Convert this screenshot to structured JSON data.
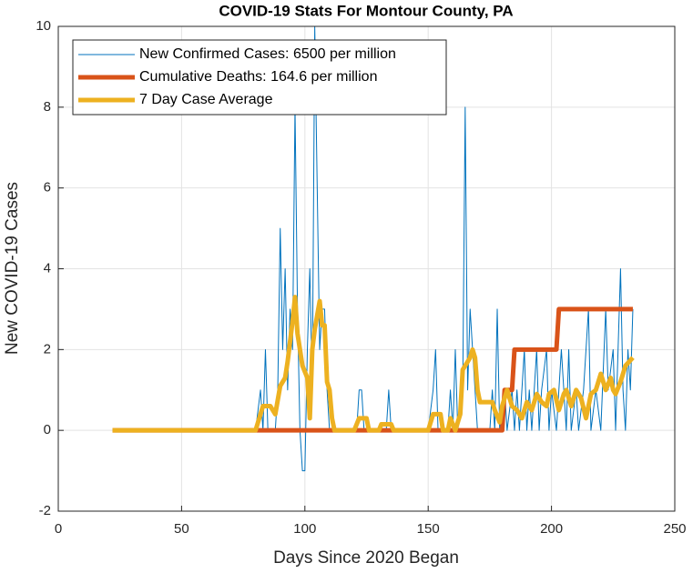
{
  "chart_data": {
    "type": "line",
    "title": "COVID-19 Stats For Montour County, PA",
    "x_label": "Days Since 2020 Began",
    "y_label": "New COVID-19 Cases",
    "xlim": [
      0,
      250
    ],
    "xticks": [
      0,
      50,
      100,
      150,
      200,
      250
    ],
    "ylim": [
      -2,
      10
    ],
    "yticks": [
      -2,
      0,
      2,
      4,
      6,
      8,
      10
    ],
    "grid": true,
    "legend": "northwest",
    "series": [
      {
        "name": "New Confirmed Cases: 6500 per million",
        "color": "#0072BD",
        "line_width": 1,
        "x": [
          22,
          80,
          82,
          83,
          84,
          85,
          88,
          89,
          90,
          91,
          92,
          93,
          94,
          95,
          96,
          97,
          98,
          99,
          100,
          101,
          102,
          103,
          104,
          105,
          106,
          107,
          108,
          109,
          110,
          115,
          121,
          122,
          123,
          124,
          133,
          134,
          135,
          150,
          152,
          153,
          154,
          158,
          159,
          160,
          161,
          162,
          164,
          165,
          166,
          167,
          168,
          169,
          170,
          175,
          176,
          177,
          178,
          179,
          181,
          182,
          184,
          185,
          186,
          187,
          189,
          190,
          191,
          192,
          194,
          195,
          196,
          198,
          199,
          200,
          202,
          204,
          205,
          206,
          207,
          208,
          210,
          211,
          213,
          215,
          216,
          218,
          220,
          222,
          223,
          225,
          226,
          228,
          229,
          230,
          231,
          232,
          233
        ],
        "values": [
          0,
          0,
          1,
          0,
          2,
          0,
          0,
          1,
          5,
          2,
          4,
          1,
          3,
          2,
          8,
          3,
          0,
          -1,
          -1,
          2,
          4,
          1,
          10,
          6,
          2,
          3,
          3,
          1,
          0,
          0,
          0,
          1,
          1,
          0,
          0,
          1,
          0,
          0,
          1,
          2,
          0,
          0,
          1,
          0,
          2,
          0,
          1,
          8,
          1,
          3,
          2,
          1,
          0,
          0,
          1,
          0,
          3,
          0,
          1,
          0,
          1,
          0,
          1,
          0,
          2,
          0,
          1,
          0,
          2,
          0,
          1,
          2,
          0,
          1,
          0,
          2,
          1,
          0,
          2,
          0,
          1,
          0,
          1,
          3,
          0,
          1,
          0,
          3,
          1,
          2,
          0,
          4,
          1,
          0,
          2,
          1,
          3
        ]
      },
      {
        "name": "Cumulative Deaths: 164.6 per million",
        "color": "#D95319",
        "line_width": 5,
        "x": [
          22,
          180,
          181,
          184,
          185,
          202,
          203,
          233
        ],
        "values": [
          0,
          0,
          1,
          1,
          2,
          2,
          3,
          3
        ]
      },
      {
        "name": "7 Day Case Average",
        "color": "#EDB120",
        "line_width": 5,
        "x": [
          22,
          80,
          83,
          86,
          88,
          90,
          92,
          93,
          95,
          96,
          97,
          98,
          99,
          101,
          102,
          103,
          104,
          106,
          107,
          108,
          109,
          110,
          111,
          112,
          120,
          122,
          125,
          126,
          130,
          131,
          135,
          136,
          150,
          152,
          155,
          156,
          158,
          159,
          161,
          163,
          164,
          166,
          167,
          168,
          169,
          170,
          171,
          176,
          177,
          179,
          180,
          182,
          184,
          186,
          188,
          190,
          192,
          194,
          196,
          198,
          199,
          201,
          203,
          205,
          206,
          208,
          210,
          212,
          214,
          216,
          218,
          220,
          222,
          224,
          225,
          226,
          228,
          230,
          233
        ],
        "values": [
          0,
          0,
          0.6,
          0.6,
          0.4,
          1.1,
          1.3,
          1.7,
          2.7,
          3.3,
          2.4,
          2.0,
          1.6,
          1.3,
          0.3,
          2.0,
          2.5,
          3.2,
          2.6,
          2.6,
          1.2,
          1.0,
          0.3,
          0,
          0,
          0.3,
          0.3,
          0,
          0,
          0.15,
          0.15,
          0,
          0,
          0.4,
          0.4,
          0,
          0,
          0.3,
          0,
          0.4,
          1.5,
          1.7,
          1.8,
          2.0,
          1.8,
          1.0,
          0.7,
          0.7,
          0.5,
          0.2,
          0.6,
          1.0,
          0.6,
          0.5,
          0.3,
          0.7,
          0.5,
          0.9,
          0.7,
          0.6,
          0.9,
          1.0,
          0.5,
          0.9,
          1.0,
          0.6,
          1.0,
          0.8,
          0.3,
          0.9,
          1.0,
          1.4,
          1.0,
          1.3,
          1.0,
          0.9,
          1.2,
          1.6,
          1.8
        ]
      }
    ]
  }
}
